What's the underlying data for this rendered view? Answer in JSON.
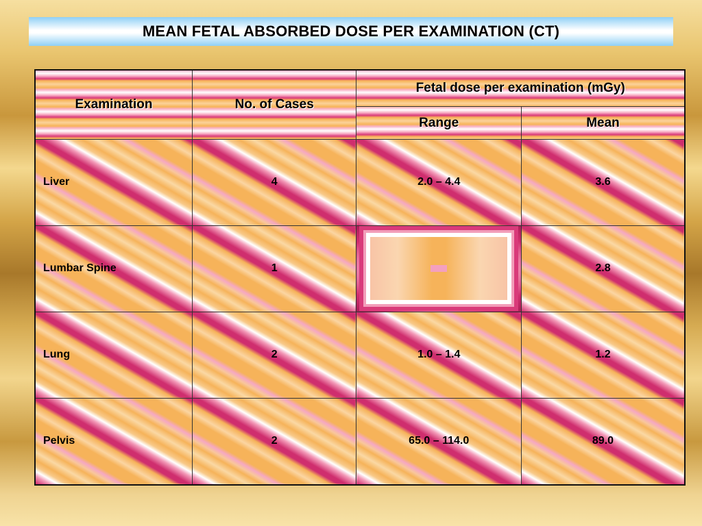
{
  "title": "MEAN FETAL ABSORBED DOSE PER EXAMINATION (CT)",
  "table": {
    "headers": {
      "examination": "Examination",
      "cases": "No. of Cases",
      "fetal_dose_group": "Fetal dose per examination (mGy)",
      "range": "Range",
      "mean": "Mean"
    },
    "rows": [
      {
        "examination": "Liver",
        "cases": "4",
        "range": "2.0 – 4.4",
        "mean": "3.6"
      },
      {
        "examination": "Lumbar Spine",
        "cases": "1",
        "range": "",
        "mean": "2.8"
      },
      {
        "examination": "Lung",
        "cases": "2",
        "range": "1.0 – 1.4",
        "mean": "1.2"
      },
      {
        "examination": "Pelvis",
        "cases": "2",
        "range": "65.0 – 114.0",
        "mean": "89.0"
      }
    ]
  }
}
